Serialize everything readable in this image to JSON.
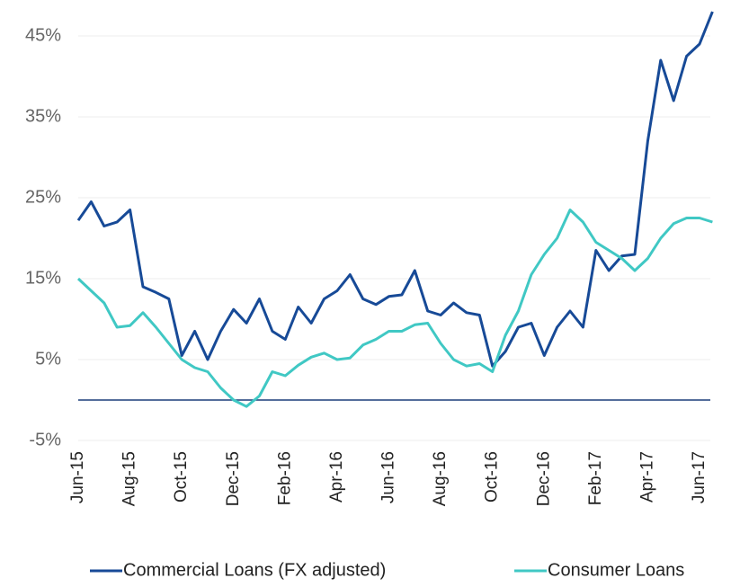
{
  "chart_data": {
    "type": "line",
    "categories": [
      "Jun-15",
      null,
      null,
      null,
      "Aug-15",
      null,
      null,
      null,
      "Oct-15",
      null,
      null,
      null,
      "Dec-15",
      null,
      null,
      null,
      "Feb-16",
      null,
      null,
      null,
      "Apr-16",
      null,
      null,
      null,
      "Jun-16",
      null,
      null,
      null,
      "Aug-16",
      null,
      null,
      null,
      "Oct-16",
      null,
      null,
      null,
      "Dec-16",
      null,
      null,
      null,
      "Feb-17",
      null,
      null,
      null,
      "Apr-17",
      null,
      null,
      null,
      "Jun-17",
      null
    ],
    "series": [
      {
        "name": "Commercial Loans (FX adjusted)",
        "color": "#174a97",
        "values": [
          22.2,
          24.5,
          21.5,
          22,
          23.5,
          14,
          13.3,
          12.5,
          5.5,
          8.5,
          5,
          8.5,
          11.2,
          9.5,
          12.5,
          8.5,
          7.5,
          11.5,
          9.5,
          12.5,
          13.5,
          15.5,
          12.5,
          11.8,
          12.8,
          13,
          16,
          11,
          10.5,
          12,
          10.8,
          10.5,
          4.2,
          6,
          9,
          9.5,
          5.5,
          9,
          11,
          9,
          18.5,
          16,
          17.8,
          18,
          32,
          42,
          37,
          42.5,
          44,
          48
        ]
      },
      {
        "name": "Consumer Loans",
        "color": "#40c8c4",
        "values": [
          15,
          13.5,
          12,
          9,
          9.2,
          10.8,
          9,
          7,
          5,
          4,
          3.5,
          1.5,
          0,
          -0.8,
          0.5,
          3.5,
          3,
          4.3,
          5.3,
          5.8,
          5,
          5.2,
          6.8,
          7.5,
          8.5,
          8.5,
          9.3,
          9.5,
          7,
          5,
          4.2,
          4.5,
          3.5,
          8,
          11,
          15.5,
          18,
          20,
          23.5,
          22,
          19.5,
          18.5,
          17.5,
          16,
          17.5,
          20,
          21.8,
          22.5,
          22.5,
          22
        ]
      }
    ],
    "ylim": [
      -5,
      48
    ],
    "yticks": [
      {
        "value": -5,
        "label": "-5%"
      },
      {
        "value": 5,
        "label": "5%"
      },
      {
        "value": 15,
        "label": "15%"
      },
      {
        "value": 25,
        "label": "25%"
      },
      {
        "value": 35,
        "label": "35%"
      },
      {
        "value": 45,
        "label": "45%"
      }
    ],
    "grid": true,
    "legend": "bottom"
  }
}
